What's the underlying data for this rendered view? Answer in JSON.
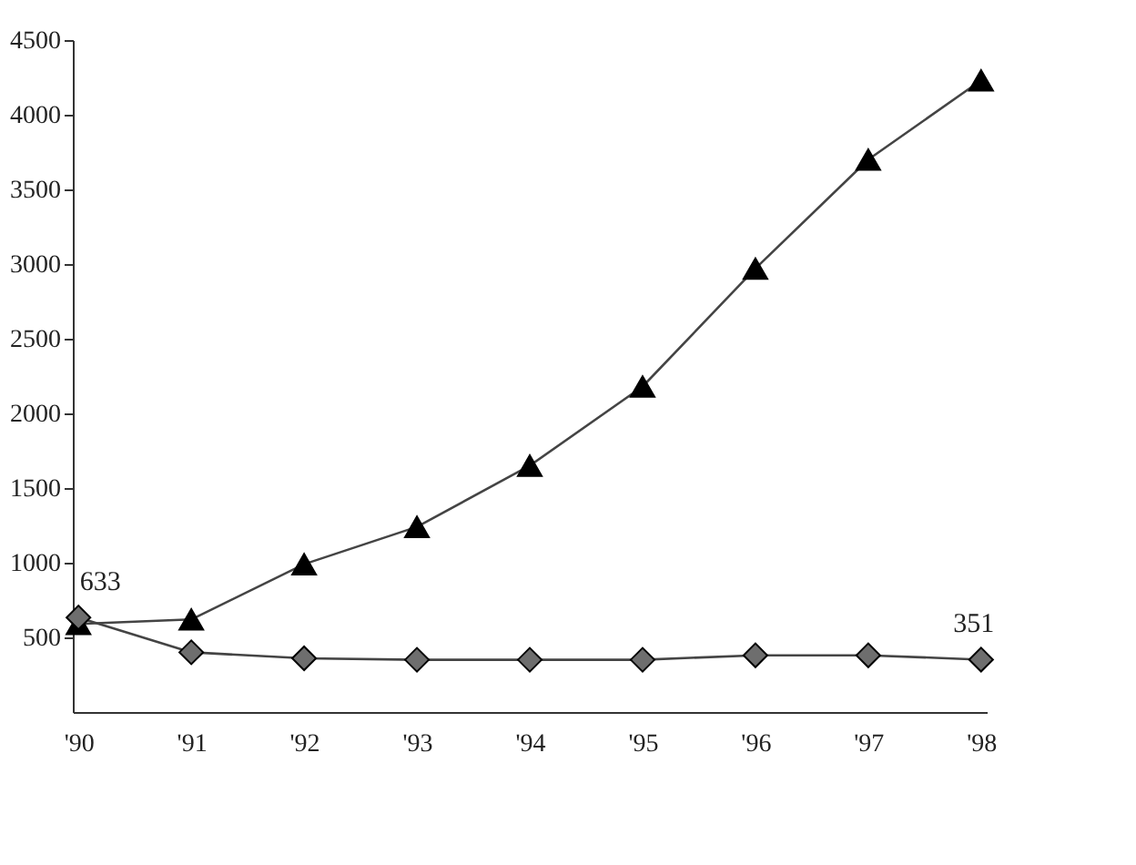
{
  "chart_data": {
    "type": "line",
    "categories": [
      "'90",
      "'91",
      "'92",
      "'93",
      "'94",
      "'95",
      "'96",
      "'97",
      "'98"
    ],
    "series": [
      {
        "color": "#000000",
        "marker": "triangle",
        "values": [
          590,
          620,
          990,
          1240,
          1650,
          2180,
          2970,
          3700,
          4230
        ],
        "value_labels": [
          null,
          null,
          null,
          null,
          null,
          null,
          null,
          null,
          null
        ]
      },
      {
        "color": "#6e6e6e",
        "marker": "diamond",
        "values": [
          633,
          400,
          360,
          350,
          350,
          350,
          380,
          380,
          351
        ],
        "value_labels": [
          "633",
          null,
          null,
          null,
          null,
          null,
          null,
          null,
          "351"
        ]
      }
    ],
    "ylim": [
      0,
      4500
    ],
    "yticks": [
      500,
      1000,
      1500,
      2000,
      2500,
      3000,
      3500,
      4000,
      4500
    ],
    "grid": false
  }
}
